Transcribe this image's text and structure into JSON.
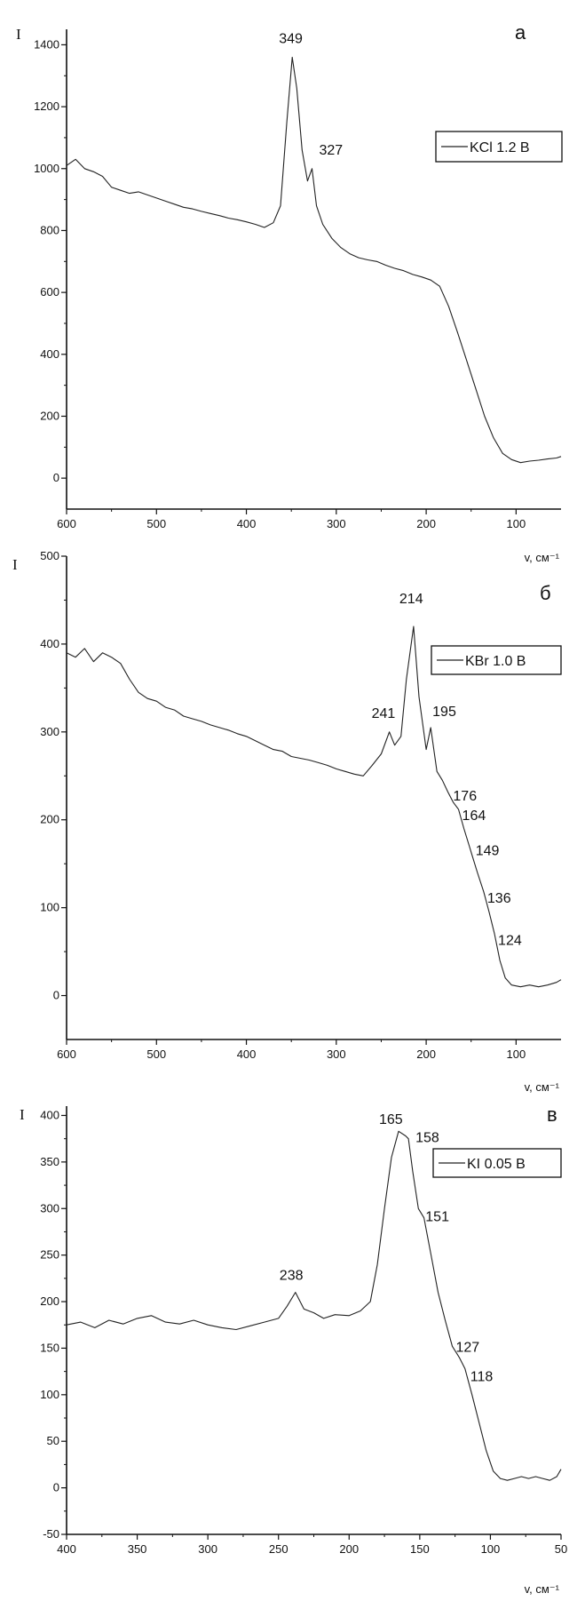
{
  "chart_data": [
    {
      "type": "line",
      "panel_label": "а",
      "ylabel": "I",
      "xlabel": "v, см⁻¹",
      "xlim": [
        600,
        50
      ],
      "ylim": [
        -100,
        1450
      ],
      "x_ticks": [
        600,
        500,
        400,
        300,
        200,
        100
      ],
      "x_tick_labels": [
        "600",
        "500",
        "400",
        "300",
        "200",
        "100"
      ],
      "y_ticks": [
        0,
        200,
        400,
        600,
        800,
        1000,
        1200,
        1400
      ],
      "y_tick_labels": [
        "0",
        "200",
        "400",
        "600",
        "800",
        "1000",
        "1200",
        "1400"
      ],
      "legend": {
        "label": "KCl 1.2 B",
        "position": "right"
      },
      "annotations": [
        {
          "text": "349",
          "x": 349,
          "y": 1360
        },
        {
          "text": "327",
          "x": 327,
          "y": 1000
        }
      ],
      "series": [
        {
          "name": "KCl 1.2 B",
          "points": [
            [
              600,
              1010
            ],
            [
              590,
              1030
            ],
            [
              580,
              1000
            ],
            [
              570,
              990
            ],
            [
              560,
              975
            ],
            [
              550,
              940
            ],
            [
              540,
              930
            ],
            [
              530,
              920
            ],
            [
              520,
              925
            ],
            [
              510,
              915
            ],
            [
              500,
              905
            ],
            [
              490,
              895
            ],
            [
              480,
              885
            ],
            [
              470,
              875
            ],
            [
              460,
              870
            ],
            [
              450,
              862
            ],
            [
              440,
              855
            ],
            [
              430,
              848
            ],
            [
              420,
              840
            ],
            [
              410,
              835
            ],
            [
              400,
              828
            ],
            [
              390,
              820
            ],
            [
              380,
              810
            ],
            [
              370,
              825
            ],
            [
              362,
              880
            ],
            [
              355,
              1150
            ],
            [
              349,
              1360
            ],
            [
              344,
              1260
            ],
            [
              338,
              1060
            ],
            [
              332,
              960
            ],
            [
              327,
              1000
            ],
            [
              322,
              880
            ],
            [
              315,
              820
            ],
            [
              305,
              775
            ],
            [
              295,
              745
            ],
            [
              285,
              725
            ],
            [
              275,
              712
            ],
            [
              265,
              705
            ],
            [
              255,
              700
            ],
            [
              245,
              688
            ],
            [
              235,
              678
            ],
            [
              225,
              670
            ],
            [
              215,
              658
            ],
            [
              205,
              650
            ],
            [
              195,
              640
            ],
            [
              185,
              620
            ],
            [
              175,
              555
            ],
            [
              165,
              470
            ],
            [
              155,
              380
            ],
            [
              145,
              290
            ],
            [
              135,
              200
            ],
            [
              125,
              130
            ],
            [
              115,
              80
            ],
            [
              105,
              60
            ],
            [
              95,
              50
            ],
            [
              85,
              55
            ],
            [
              75,
              58
            ],
            [
              65,
              62
            ],
            [
              55,
              65
            ],
            [
              50,
              70
            ]
          ]
        }
      ]
    },
    {
      "type": "line",
      "panel_label": "б",
      "ylabel": "I",
      "xlabel": "v, см⁻¹",
      "xlim": [
        600,
        50
      ],
      "ylim": [
        -50,
        500
      ],
      "x_ticks": [
        600,
        500,
        400,
        300,
        200,
        100
      ],
      "x_tick_labels": [
        "600",
        "500",
        "400",
        "300",
        "200",
        "100"
      ],
      "y_ticks": [
        0,
        100,
        200,
        300,
        400,
        500
      ],
      "y_tick_labels": [
        "0",
        "100",
        "200",
        "300",
        "400",
        "500"
      ],
      "legend": {
        "label": "KBr 1.0 B",
        "position": "top-right"
      },
      "annotations": [
        {
          "text": "214",
          "x": 214,
          "y": 420
        },
        {
          "text": "241",
          "x": 241,
          "y": 308
        },
        {
          "text": "195",
          "x": 195,
          "y": 310
        },
        {
          "text": "176",
          "x": 176,
          "y": 232
        },
        {
          "text": "164",
          "x": 164,
          "y": 212
        },
        {
          "text": "149",
          "x": 149,
          "y": 168
        },
        {
          "text": "136",
          "x": 136,
          "y": 120
        },
        {
          "text": "124",
          "x": 124,
          "y": 66
        }
      ],
      "series": [
        {
          "name": "KBr 1.0 B",
          "points": [
            [
              600,
              390
            ],
            [
              590,
              385
            ],
            [
              580,
              395
            ],
            [
              570,
              380
            ],
            [
              560,
              390
            ],
            [
              550,
              385
            ],
            [
              540,
              378
            ],
            [
              530,
              360
            ],
            [
              520,
              345
            ],
            [
              510,
              338
            ],
            [
              500,
              335
            ],
            [
              490,
              328
            ],
            [
              480,
              325
            ],
            [
              470,
              318
            ],
            [
              460,
              315
            ],
            [
              450,
              312
            ],
            [
              440,
              308
            ],
            [
              430,
              305
            ],
            [
              420,
              302
            ],
            [
              410,
              298
            ],
            [
              400,
              295
            ],
            [
              390,
              290
            ],
            [
              380,
              285
            ],
            [
              370,
              280
            ],
            [
              360,
              278
            ],
            [
              350,
              272
            ],
            [
              340,
              270
            ],
            [
              330,
              268
            ],
            [
              320,
              265
            ],
            [
              310,
              262
            ],
            [
              300,
              258
            ],
            [
              290,
              255
            ],
            [
              280,
              252
            ],
            [
              270,
              250
            ],
            [
              260,
              262
            ],
            [
              250,
              275
            ],
            [
              241,
              300
            ],
            [
              235,
              285
            ],
            [
              228,
              295
            ],
            [
              222,
              360
            ],
            [
              214,
              420
            ],
            [
              208,
              340
            ],
            [
              200,
              280
            ],
            [
              195,
              305
            ],
            [
              188,
              255
            ],
            [
              182,
              245
            ],
            [
              176,
              232
            ],
            [
              170,
              220
            ],
            [
              164,
              212
            ],
            [
              158,
              190
            ],
            [
              152,
              170
            ],
            [
              149,
              160
            ],
            [
              143,
              140
            ],
            [
              136,
              118
            ],
            [
              130,
              95
            ],
            [
              124,
              70
            ],
            [
              118,
              40
            ],
            [
              112,
              20
            ],
            [
              105,
              12
            ],
            [
              95,
              10
            ],
            [
              85,
              12
            ],
            [
              75,
              10
            ],
            [
              65,
              12
            ],
            [
              55,
              15
            ],
            [
              50,
              18
            ]
          ]
        }
      ]
    },
    {
      "type": "line",
      "panel_label": "в",
      "ylabel": "I",
      "xlabel": "v, см⁻¹",
      "xlim": [
        400,
        50
      ],
      "ylim": [
        -50,
        410
      ],
      "x_ticks": [
        400,
        350,
        300,
        250,
        200,
        150,
        100,
        50
      ],
      "x_tick_labels": [
        "400",
        "350",
        "300",
        "250",
        "200",
        "150",
        "100",
        "50"
      ],
      "y_ticks": [
        -50,
        0,
        50,
        100,
        150,
        200,
        250,
        300,
        350,
        400
      ],
      "y_tick_labels": [
        "-50",
        "0",
        "50",
        "100",
        "150",
        "200",
        "250",
        "300",
        "350",
        "400"
      ],
      "legend": {
        "label": "KI 0.05 B",
        "position": "top-right"
      },
      "annotations": [
        {
          "text": "165",
          "x": 165,
          "y": 385
        },
        {
          "text": "158",
          "x": 158,
          "y": 375
        },
        {
          "text": "151",
          "x": 151,
          "y": 300
        },
        {
          "text": "238",
          "x": 238,
          "y": 212
        },
        {
          "text": "127",
          "x": 127,
          "y": 152
        },
        {
          "text": "118",
          "x": 118,
          "y": 128
        }
      ],
      "series": [
        {
          "name": "KI 0.05 B",
          "points": [
            [
              400,
              175
            ],
            [
              390,
              178
            ],
            [
              380,
              172
            ],
            [
              370,
              180
            ],
            [
              360,
              176
            ],
            [
              350,
              182
            ],
            [
              340,
              185
            ],
            [
              330,
              178
            ],
            [
              320,
              176
            ],
            [
              310,
              180
            ],
            [
              300,
              175
            ],
            [
              290,
              172
            ],
            [
              280,
              170
            ],
            [
              270,
              174
            ],
            [
              260,
              178
            ],
            [
              250,
              182
            ],
            [
              244,
              195
            ],
            [
              238,
              210
            ],
            [
              232,
              192
            ],
            [
              225,
              188
            ],
            [
              218,
              182
            ],
            [
              210,
              186
            ],
            [
              200,
              185
            ],
            [
              192,
              190
            ],
            [
              185,
              200
            ],
            [
              180,
              240
            ],
            [
              175,
              300
            ],
            [
              170,
              355
            ],
            [
              165,
              383
            ],
            [
              160,
              378
            ],
            [
              158,
              375
            ],
            [
              155,
              340
            ],
            [
              151,
              300
            ],
            [
              147,
              290
            ],
            [
              142,
              250
            ],
            [
              137,
              210
            ],
            [
              132,
              180
            ],
            [
              127,
              152
            ],
            [
              122,
              140
            ],
            [
              118,
              128
            ],
            [
              113,
              100
            ],
            [
              108,
              70
            ],
            [
              103,
              40
            ],
            [
              98,
              18
            ],
            [
              93,
              10
            ],
            [
              88,
              8
            ],
            [
              83,
              10
            ],
            [
              78,
              12
            ],
            [
              73,
              10
            ],
            [
              68,
              12
            ],
            [
              63,
              10
            ],
            [
              58,
              8
            ],
            [
              53,
              12
            ],
            [
              50,
              20
            ]
          ]
        }
      ]
    }
  ]
}
